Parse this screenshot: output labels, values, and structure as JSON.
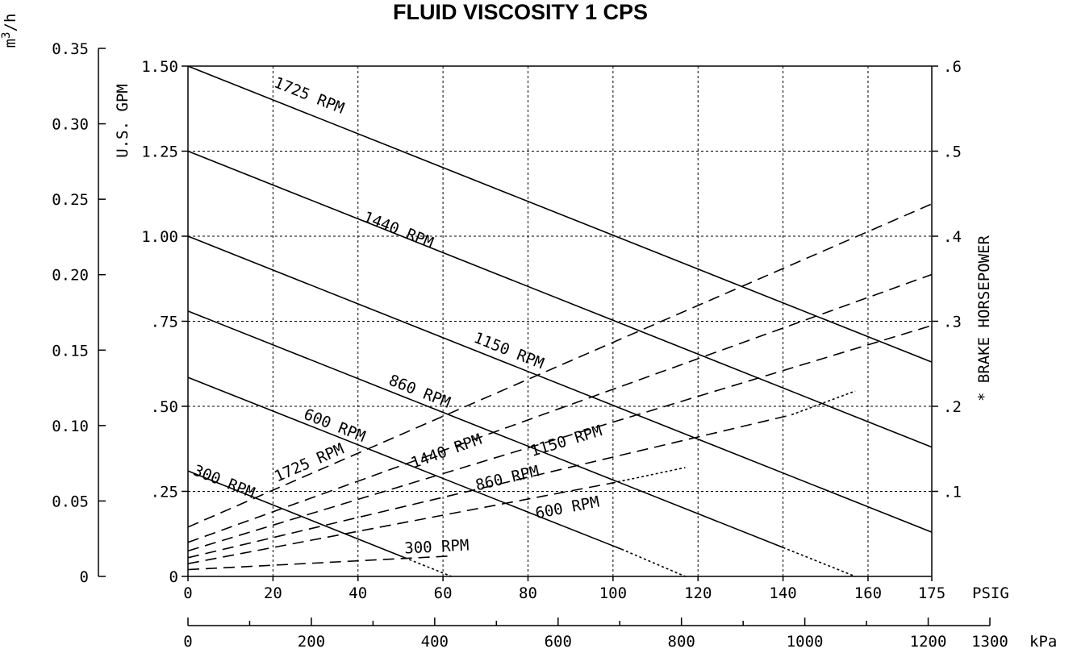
{
  "chart_data": {
    "type": "line",
    "title": "FLUID VISCOSITY 1 CPS",
    "x_axis": {
      "label": "PSIG",
      "range": [
        0,
        175
      ],
      "ticks": [
        0,
        20,
        40,
        60,
        80,
        100,
        120,
        140,
        160,
        175
      ],
      "tick_labels": [
        "0",
        "20",
        "40",
        "60",
        "80",
        "100",
        "120",
        "140",
        "160",
        "175"
      ],
      "grid": [
        20,
        40,
        60,
        80,
        100,
        120,
        140,
        160
      ]
    },
    "x_axis_secondary": {
      "label": "kPa",
      "range": [
        0,
        1300
      ],
      "major_ticks": [
        0,
        200,
        400,
        600,
        800,
        1000,
        1200,
        1300
      ],
      "tick_labels": [
        "0",
        "200",
        "400",
        "600",
        "800",
        "1000",
        "1200",
        "1300"
      ],
      "minor_ticks": [
        100,
        300,
        500,
        700,
        900,
        1100
      ]
    },
    "y_axis_left": {
      "label": "U.S. GPM",
      "range": [
        0,
        1.5
      ],
      "ticks": [
        0,
        0.25,
        0.5,
        0.75,
        1.0,
        1.25,
        1.5
      ],
      "tick_labels": [
        "0",
        ".25",
        ".50",
        ".75",
        "1.00",
        "1.25",
        "1.50"
      ],
      "grid": [
        0.25,
        0.5,
        0.75,
        1.0,
        1.25
      ]
    },
    "y_axis_left_outer": {
      "label": "m",
      "label_sup": "3",
      "label_tail": "/h",
      "range": [
        0,
        0.35
      ],
      "ticks": [
        0,
        0.05,
        0.1,
        0.15,
        0.2,
        0.25,
        0.3,
        0.35
      ],
      "tick_labels": [
        "0",
        "0.05",
        "0.10",
        "0.15",
        "0.20",
        "0.25",
        "0.30",
        "0.35"
      ]
    },
    "y_axis_right": {
      "label": "* BRAKE HORSEPOWER",
      "range": [
        0,
        0.6
      ],
      "ticks": [
        0.1,
        0.2,
        0.3,
        0.4,
        0.5,
        0.6
      ],
      "tick_labels": [
        ".1",
        ".2",
        ".3",
        ".4",
        ".5",
        ".6"
      ]
    },
    "flow_series": [
      {
        "name": "1725 RPM",
        "points": [
          [
            0,
            1.5
          ],
          [
            175,
            0.63
          ]
        ]
      },
      {
        "name": "1440 RPM",
        "points": [
          [
            0,
            1.25
          ],
          [
            175,
            0.38
          ]
        ]
      },
      {
        "name": "1150 RPM",
        "points": [
          [
            0,
            1.0
          ],
          [
            175,
            0.13
          ]
        ]
      },
      {
        "name": "860 RPM",
        "points": [
          [
            0,
            0.78
          ],
          [
            140,
            0.085
          ]
        ],
        "dotted_to": [
          [
            140,
            0.085
          ],
          [
            157,
            0.0
          ]
        ]
      },
      {
        "name": "600 RPM",
        "points": [
          [
            0,
            0.585
          ],
          [
            102,
            0.08
          ]
        ],
        "dotted_to": [
          [
            102,
            0.08
          ],
          [
            117,
            0.0
          ]
        ]
      },
      {
        "name": "300 RPM",
        "points": [
          [
            0,
            0.31
          ],
          [
            51,
            0.055
          ]
        ],
        "dotted_to": [
          [
            51,
            0.055
          ],
          [
            62,
            0.0
          ]
        ]
      }
    ],
    "horsepower_series": [
      {
        "name": "1725 RPM",
        "points": [
          [
            0,
            0.058
          ],
          [
            175,
            0.438
          ]
        ]
      },
      {
        "name": "1440 RPM",
        "points": [
          [
            0,
            0.04
          ],
          [
            175,
            0.355
          ]
        ]
      },
      {
        "name": "1150 RPM",
        "points": [
          [
            0,
            0.03
          ],
          [
            175,
            0.295
          ]
        ]
      },
      {
        "name": "860 RPM",
        "points": [
          [
            0,
            0.022
          ],
          [
            142,
            0.19
          ]
        ],
        "dotted_to": [
          [
            142,
            0.19
          ],
          [
            157,
            0.218
          ]
        ]
      },
      {
        "name": "600 RPM",
        "points": [
          [
            0,
            0.015
          ],
          [
            100,
            0.11
          ]
        ],
        "dotted_to": [
          [
            100,
            0.11
          ],
          [
            117,
            0.128
          ]
        ]
      },
      {
        "name": "300 RPM",
        "points": [
          [
            0,
            0.008
          ],
          [
            62,
            0.024
          ]
        ]
      }
    ],
    "curve_labels": [
      {
        "text": "1725 RPM",
        "series": "flow",
        "at": [
          20,
          1.44
        ]
      },
      {
        "text": "1440 RPM",
        "series": "flow",
        "at": [
          41,
          1.045
        ]
      },
      {
        "text": "1150 RPM",
        "series": "flow",
        "at": [
          67,
          0.69
        ]
      },
      {
        "text": "860 RPM",
        "series": "flow",
        "at": [
          47,
          0.565
        ]
      },
      {
        "text": "600 RPM",
        "series": "flow",
        "at": [
          27,
          0.465
        ]
      },
      {
        "text": "300 RPM",
        "series": "flow",
        "at": [
          1,
          0.3
        ]
      },
      {
        "text": "1725 RPM",
        "series": "horsepower",
        "at": [
          21,
          0.111
        ]
      },
      {
        "text": "1440 RPM",
        "series": "horsepower",
        "at": [
          53,
          0.127
        ]
      },
      {
        "text": "1150 RPM",
        "series": "horsepower",
        "at": [
          81,
          0.141
        ]
      },
      {
        "text": "860 RPM",
        "series": "horsepower",
        "at": [
          68,
          0.101
        ]
      },
      {
        "text": "600 RPM",
        "series": "horsepower",
        "at": [
          82,
          0.068
        ]
      },
      {
        "text": "300 RPM",
        "series": "horsepower",
        "at": [
          51,
          0.027
        ]
      }
    ]
  }
}
